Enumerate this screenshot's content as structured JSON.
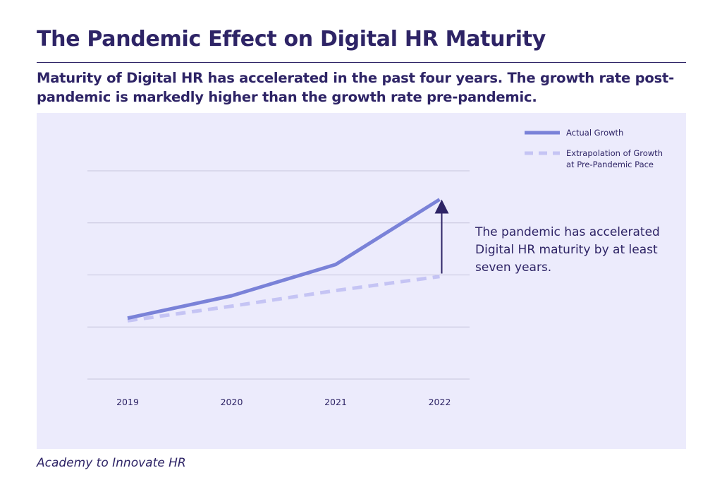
{
  "header": {
    "title": "The Pandemic Effect on Digital HR Maturity",
    "subtitle": "Maturity of Digital HR has accelerated in the past four years. The growth rate post-pandemic is markedly higher than the growth rate pre-pandemic."
  },
  "footer": {
    "source": "Academy to Innovate HR"
  },
  "colors": {
    "actual": "#7a82d8",
    "extrapolation": "#c5c4f4",
    "arrow": "#2e2466",
    "grid": "#c6c4dc",
    "panel": "#ecebfc",
    "text": "#2e2466"
  },
  "chart_data": {
    "type": "line",
    "title": "",
    "xlabel": "",
    "ylabel": "",
    "categories": [
      "2019",
      "2020",
      "2021",
      "2022"
    ],
    "ylim": [
      0,
      4
    ],
    "y_gridlines": [
      0,
      1,
      2,
      3,
      4
    ],
    "y_tick_labels_shown": false,
    "grid": true,
    "legend_position": "top-right",
    "series": [
      {
        "name": "Actual Growth",
        "style": "solid",
        "color": "#7a82d8",
        "values": [
          1.17,
          1.6,
          2.2,
          3.45
        ]
      },
      {
        "name": "Extrapolation of Growth at Pre-Pandemic Pace",
        "style": "dashed",
        "color": "#c5c4f4",
        "values": [
          1.12,
          1.4,
          1.7,
          1.97
        ]
      }
    ],
    "legend": [
      {
        "label_lines": [
          "Actual Growth"
        ],
        "series_index": 0
      },
      {
        "label_lines": [
          "Extrapolation of Growth",
          "at Pre-Pandemic Pace"
        ],
        "series_index": 1
      }
    ],
    "annotation": {
      "text_lines": [
        "The pandemic has accelerated",
        "Digital HR maturity by at least",
        "seven years."
      ],
      "arrow_category": "2022",
      "arrow_from_value": 2.0,
      "arrow_to_value": 3.45
    }
  }
}
